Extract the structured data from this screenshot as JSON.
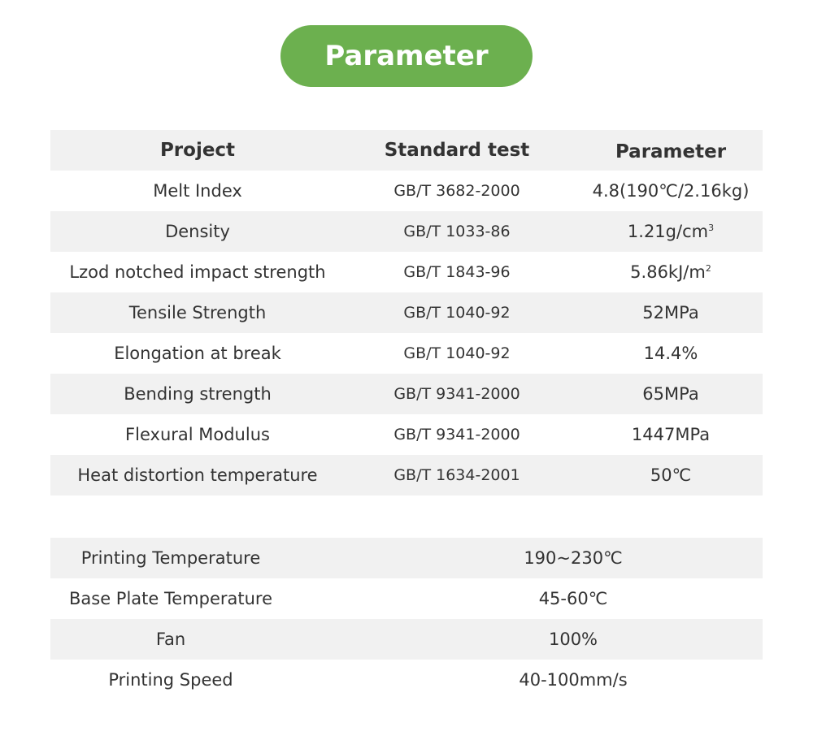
{
  "title": "Parameter",
  "colors": {
    "accent": "#6cb04f",
    "row_alt": "#f1f1f1",
    "text": "#333333"
  },
  "material_table": {
    "headers": [
      "Project",
      "Standard test",
      "Parameter"
    ],
    "rows": [
      {
        "project": "Melt Index",
        "standard": "GB/T 3682-2000",
        "value": "4.8(190℃/2.16kg)"
      },
      {
        "project": "Density",
        "standard": "GB/T 1033-86",
        "value": "1.21g/cm",
        "sup": "3"
      },
      {
        "project": "Lzod notched impact strength",
        "standard": "GB/T 1843-96",
        "value": "5.86kJ/m",
        "sup": "2"
      },
      {
        "project": "Tensile Strength",
        "standard": "GB/T 1040-92",
        "value": "52MPa"
      },
      {
        "project": "Elongation at break",
        "standard": "GB/T 1040-92",
        "value": "14.4%"
      },
      {
        "project": "Bending strength",
        "standard": "GB/T 9341-2000",
        "value": "65MPa"
      },
      {
        "project": "Flexural Modulus",
        "standard": "GB/T 9341-2000",
        "value": "1447MPa"
      },
      {
        "project": "Heat distortion temperature",
        "standard": "GB/T 1634-2001",
        "value": "50℃"
      }
    ]
  },
  "printing_table": {
    "rows": [
      {
        "label": "Printing Temperature",
        "value": "190~230℃"
      },
      {
        "label": "Base Plate Temperature",
        "value": "45-60℃"
      },
      {
        "label": "Fan",
        "value": "100%"
      },
      {
        "label": "Printing Speed",
        "value": "40-100mm/s"
      }
    ]
  }
}
